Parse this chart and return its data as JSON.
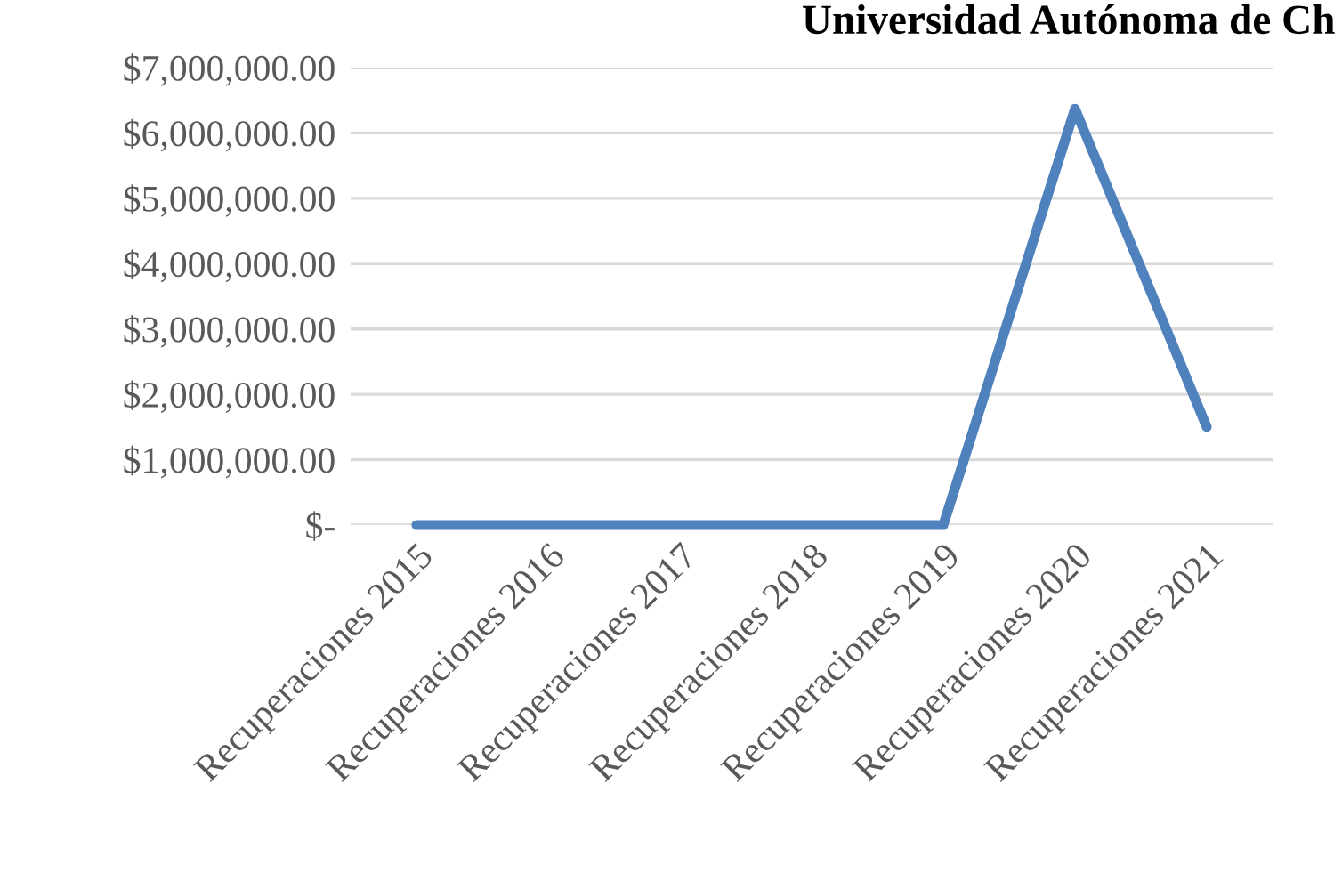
{
  "chart_data": {
    "type": "line",
    "title": "Universidad Autónoma de Ch",
    "categories": [
      "Recuperaciones 2015",
      "Recuperaciones 2016",
      "Recuperaciones 2017",
      "Recuperaciones 2018",
      "Recuperaciones 2019",
      "Recuperaciones 2020",
      "Recuperaciones 2021"
    ],
    "series": [
      {
        "color": "#4f81bd",
        "values": [
          0,
          0,
          0,
          0,
          0,
          6370000,
          1500000
        ]
      }
    ],
    "ylim": [
      0,
      7000000
    ],
    "yticks": [
      {
        "value": 0,
        "label": "$-"
      },
      {
        "value": 1000000,
        "label": "$1,000,000.00"
      },
      {
        "value": 2000000,
        "label": "$2,000,000.00"
      },
      {
        "value": 3000000,
        "label": "$3,000,000.00"
      },
      {
        "value": 4000000,
        "label": "$4,000,000.00"
      },
      {
        "value": 5000000,
        "label": "$5,000,000.00"
      },
      {
        "value": 6000000,
        "label": "$6,000,000.00"
      },
      {
        "value": 7000000,
        "label": "$7,000,000.00"
      }
    ],
    "grid": "y",
    "legend": false,
    "marker": "none",
    "line_style": "solid"
  }
}
